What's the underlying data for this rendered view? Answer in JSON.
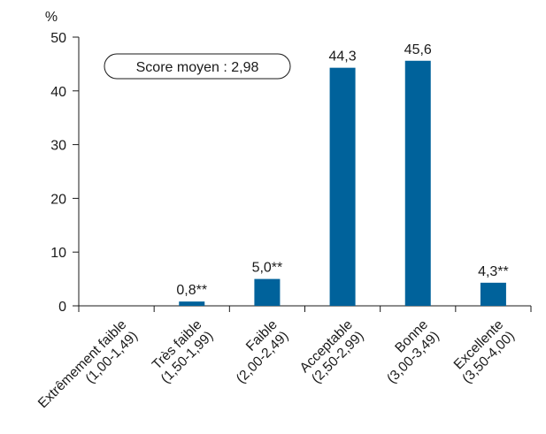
{
  "chart_data": {
    "type": "bar",
    "unit_label": "%",
    "categories": [
      [
        "Extrêmement faible",
        "(1,00-1,49)"
      ],
      [
        "Très faible",
        "(1,50-1,99)"
      ],
      [
        "Faible",
        "(2,00-2,49)"
      ],
      [
        "Acceptable",
        "(2,50-2,99)"
      ],
      [
        "Bonne",
        "(3,00-3,49)"
      ],
      [
        "Excellente",
        "(3,50-4,00)"
      ]
    ],
    "values": [
      0,
      0.8,
      5.0,
      44.3,
      45.6,
      4.3
    ],
    "data_labels": [
      "",
      "0,8**",
      "5,0**",
      "44,3",
      "45,6",
      "4,3**"
    ],
    "yticks": [
      0,
      10,
      20,
      30,
      40,
      50
    ],
    "ytick_labels": [
      "0",
      "10",
      "20",
      "30",
      "40",
      "50"
    ],
    "ylim": [
      0,
      50
    ],
    "annotation": "Score moyen : 2,98",
    "grid": false,
    "bar_color": "#00629b"
  }
}
